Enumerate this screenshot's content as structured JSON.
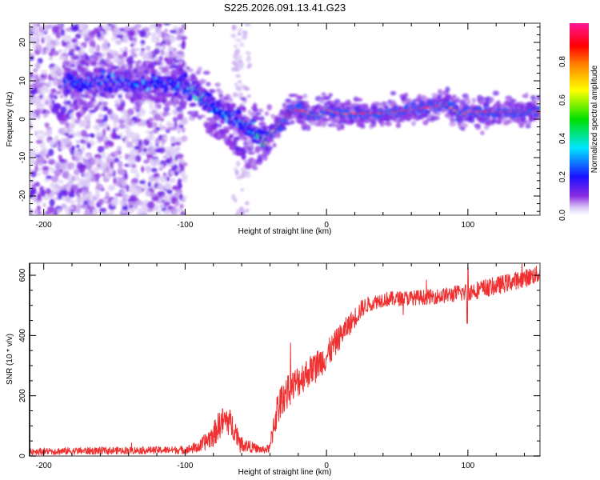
{
  "figure_title": "S225.2026.091.13.41.G23",
  "chart_data": [
    {
      "type": "heatmap",
      "title": "S225.2026.091.13.41.G23",
      "xlabel": "Height of straight line (km)",
      "ylabel": "Frequency (Hz)",
      "xlim": [
        -210,
        151
      ],
      "ylim": [
        -25,
        25
      ],
      "xticks": [
        -200,
        -100,
        0,
        100
      ],
      "xtick_labels": [
        "-200",
        "-100",
        "0",
        "100"
      ],
      "yticks": [
        -20,
        -10,
        0,
        10,
        20
      ],
      "ytick_labels": [
        "-20",
        "-10",
        "0",
        "10",
        "20"
      ],
      "colorbar": {
        "label": "Normalized spectral amplitude",
        "range": [
          0.0,
          1.0
        ],
        "ticks": [
          0.0,
          0.2,
          0.4,
          0.6,
          0.8
        ],
        "tick_labels": [
          "0.0",
          "0.2",
          "0.4",
          "0.6",
          "0.8"
        ],
        "colormap": [
          "#ffffff",
          "#d9c8f5",
          "#8a2be2",
          "#1a10ff",
          "#00e5ff",
          "#00e000",
          "#ffff00",
          "#ff8800",
          "#ff0000",
          "#ff1493"
        ]
      },
      "ridge": {
        "x": [
          -175,
          -160,
          -150,
          -140,
          -130,
          -120,
          -110,
          -100,
          -95,
          -90,
          -85,
          -80,
          -75,
          -70,
          -65,
          -60,
          -55,
          -50,
          -47,
          -44,
          -40,
          -35,
          -30,
          -25,
          -20,
          -15,
          -10,
          -5,
          0,
          5,
          10,
          20,
          40,
          60,
          80,
          85,
          90,
          95,
          100,
          110,
          120,
          130,
          140,
          151
        ],
        "freq": [
          9,
          9.5,
          10,
          9.5,
          9,
          9.2,
          9,
          8.8,
          7.5,
          6,
          5,
          3.5,
          2,
          1,
          0,
          -1,
          -2.5,
          -3.5,
          -5,
          -5,
          -4,
          -2,
          0,
          2,
          2.5,
          2,
          1,
          1,
          2.5,
          2,
          1.5,
          1.5,
          1.5,
          2.5,
          3.5,
          3.8,
          2.5,
          1,
          2,
          2,
          2,
          2,
          2,
          2
        ],
        "amplitude": [
          0.25,
          0.3,
          0.32,
          0.28,
          0.3,
          0.32,
          0.3,
          0.35,
          0.38,
          0.4,
          0.38,
          0.35,
          0.35,
          0.33,
          0.33,
          0.35,
          0.38,
          0.45,
          0.55,
          0.72,
          0.75,
          0.85,
          0.9,
          0.95,
          0.95,
          0.9,
          0.85,
          0.8,
          0.88,
          0.9,
          0.92,
          0.93,
          0.93,
          0.95,
          0.95,
          0.92,
          0.85,
          0.8,
          0.92,
          0.95,
          0.95,
          0.95,
          0.95,
          0.95
        ]
      },
      "secondary_branch": {
        "x": [
          -85,
          -75,
          -65,
          -55,
          -50
        ],
        "freq": [
          -1,
          -4,
          -7,
          -10,
          -13
        ],
        "amplitude": [
          0.2,
          0.22,
          0.25,
          0.25,
          0.2
        ]
      },
      "noise_region_km": [
        -210,
        -100
      ]
    },
    {
      "type": "line",
      "xlabel": "Height of straight line (km)",
      "ylabel": "SNR (10 * v/v)",
      "xlim": [
        -210,
        151
      ],
      "ylim": [
        0,
        640
      ],
      "xticks": [
        -200,
        -100,
        0,
        100
      ],
      "xtick_labels": [
        "-200",
        "-100",
        "0",
        "100"
      ],
      "yticks": [
        0,
        200,
        400,
        600
      ],
      "ytick_labels": [
        "0",
        "200",
        "400",
        "600"
      ],
      "series": [
        {
          "name": "SNR",
          "color": "#f03030",
          "trend_x": [
            -210,
            -150,
            -110,
            -100,
            -90,
            -80,
            -75,
            -70,
            -65,
            -60,
            -50,
            -45,
            -40,
            -38,
            -35,
            -30,
            -20,
            -10,
            0,
            10,
            20,
            25,
            30,
            40,
            60,
            80,
            100,
            120,
            140,
            151
          ],
          "trend_y": [
            15,
            18,
            20,
            20,
            30,
            70,
            110,
            120,
            90,
            40,
            25,
            20,
            25,
            90,
            150,
            200,
            250,
            290,
            330,
            400,
            460,
            490,
            505,
            520,
            525,
            530,
            545,
            565,
            590,
            605
          ],
          "noise_amplitude": [
            12,
            12,
            12,
            14,
            20,
            40,
            50,
            50,
            40,
            25,
            15,
            12,
            15,
            50,
            60,
            55,
            55,
            50,
            50,
            40,
            35,
            30,
            25,
            25,
            25,
            25,
            30,
            30,
            30,
            30
          ]
        }
      ]
    }
  ]
}
